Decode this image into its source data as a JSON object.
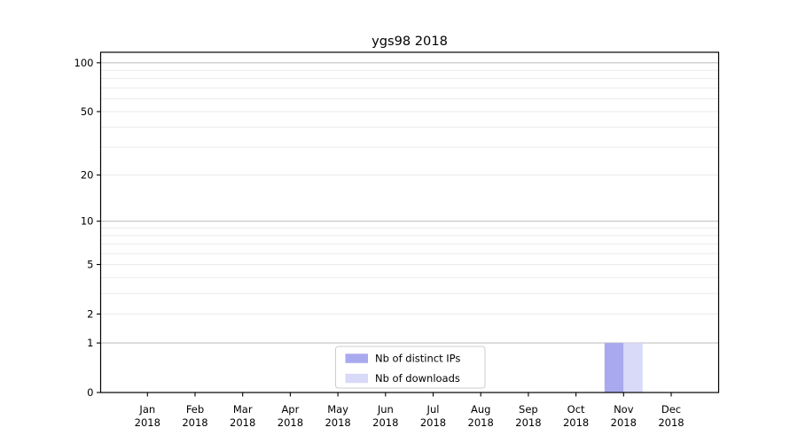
{
  "chart_data": {
    "type": "bar",
    "title": "ygs98 2018",
    "x_categories": [
      "Jan",
      "Feb",
      "Mar",
      "Apr",
      "May",
      "Jun",
      "Jul",
      "Aug",
      "Sep",
      "Oct",
      "Nov",
      "Dec"
    ],
    "x_year": "2018",
    "series": [
      {
        "name": "Nb of distinct IPs",
        "color": "#a9a9ef",
        "values": [
          0,
          0,
          0,
          0,
          0,
          0,
          0,
          0,
          0,
          0,
          1,
          0
        ]
      },
      {
        "name": "Nb of downloads",
        "color": "#d9d9f8",
        "values": [
          0,
          0,
          0,
          0,
          0,
          0,
          0,
          0,
          0,
          0,
          1,
          0
        ]
      }
    ],
    "yscale": "log10(1+y)",
    "ylim": [
      0,
      116
    ],
    "yticks": [
      0,
      1,
      2,
      5,
      10,
      20,
      50,
      100
    ],
    "y_major_gridlines": [
      1,
      10,
      100
    ],
    "y_minor_gridlines": [
      2,
      3,
      4,
      5,
      6,
      7,
      8,
      9,
      20,
      30,
      40,
      50,
      60,
      70,
      80,
      90
    ],
    "grid": true,
    "legend": {
      "position": "lower center",
      "entries": [
        "Nb of distinct IPs",
        "Nb of downloads"
      ],
      "border_color": "#cccccc",
      "background": "#ffffff"
    },
    "colors": {
      "axis": "#000000",
      "text": "#000000",
      "major_grid": "#c2c2c2",
      "minor_grid": "#ebebeb",
      "background": "#ffffff"
    }
  }
}
